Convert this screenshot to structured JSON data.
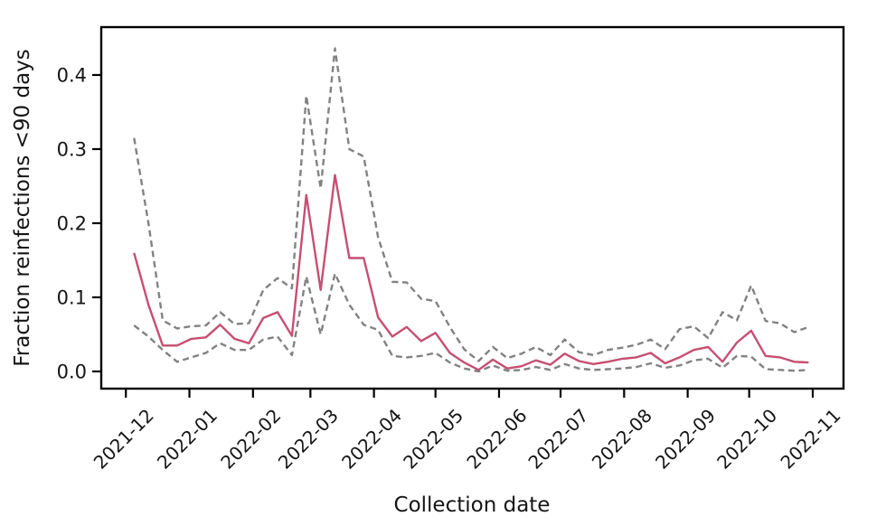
{
  "chart": {
    "xlabel": "Collection date",
    "ylabel": "Fraction reinfections <90 days"
  },
  "chart_data": {
    "type": "line",
    "title": "",
    "xlabel": "Collection date",
    "ylabel": "Fraction reinfections <90 days",
    "grid": false,
    "legend": "none",
    "yticks": [
      "0.0",
      "0.1",
      "0.2",
      "0.3",
      "0.4"
    ],
    "ytick_values": [
      0.0,
      0.1,
      0.2,
      0.3,
      0.4
    ],
    "xticks": [
      "2021-12",
      "2022-01",
      "2022-02",
      "2022-03",
      "2022-04",
      "2022-05",
      "2022-06",
      "2022-07",
      "2022-08",
      "2022-09",
      "2022-10",
      "2022-11"
    ],
    "ylim": [
      -0.0232,
      0.4646
    ],
    "xlim_dates": [
      "2021-11-19",
      "2022-11-16"
    ],
    "x": [
      "2021-12-05",
      "2021-12-12",
      "2021-12-19",
      "2021-12-26",
      "2022-01-02",
      "2022-01-09",
      "2022-01-16",
      "2022-01-23",
      "2022-01-30",
      "2022-02-06",
      "2022-02-13",
      "2022-02-20",
      "2022-02-27",
      "2022-03-06",
      "2022-03-13",
      "2022-03-20",
      "2022-03-27",
      "2022-04-03",
      "2022-04-10",
      "2022-04-17",
      "2022-04-24",
      "2022-05-01",
      "2022-05-08",
      "2022-05-15",
      "2022-05-22",
      "2022-05-29",
      "2022-06-05",
      "2022-06-12",
      "2022-06-19",
      "2022-06-26",
      "2022-07-03",
      "2022-07-10",
      "2022-07-17",
      "2022-07-24",
      "2022-07-31",
      "2022-08-07",
      "2022-08-14",
      "2022-08-21",
      "2022-08-28",
      "2022-09-04",
      "2022-09-11",
      "2022-09-18",
      "2022-09-25",
      "2022-10-02",
      "2022-10-09",
      "2022-10-16",
      "2022-10-23",
      "2022-10-30"
    ],
    "series": [
      {
        "name": "fraction_reinfections",
        "style": "solid",
        "color": "#c64f72",
        "values": [
          0.16,
          0.09,
          0.035,
          0.035,
          0.044,
          0.046,
          0.063,
          0.044,
          0.038,
          0.072,
          0.08,
          0.048,
          0.238,
          0.11,
          0.265,
          0.153,
          0.153,
          0.073,
          0.047,
          0.06,
          0.041,
          0.052,
          0.025,
          0.012,
          0.002,
          0.016,
          0.004,
          0.007,
          0.015,
          0.009,
          0.024,
          0.014,
          0.01,
          0.013,
          0.017,
          0.019,
          0.025,
          0.011,
          0.019,
          0.029,
          0.033,
          0.013,
          0.039,
          0.055,
          0.021,
          0.019,
          0.013,
          0.012
        ]
      },
      {
        "name": "upper_bound",
        "style": "dashed",
        "color": "#828282",
        "values": [
          0.315,
          0.2,
          0.069,
          0.058,
          0.061,
          0.062,
          0.08,
          0.064,
          0.065,
          0.11,
          0.126,
          0.112,
          0.372,
          0.247,
          0.436,
          0.3,
          0.29,
          0.181,
          0.121,
          0.12,
          0.098,
          0.095,
          0.06,
          0.03,
          0.014,
          0.033,
          0.018,
          0.024,
          0.033,
          0.022,
          0.043,
          0.026,
          0.022,
          0.029,
          0.032,
          0.036,
          0.043,
          0.03,
          0.057,
          0.061,
          0.045,
          0.08,
          0.069,
          0.116,
          0.068,
          0.065,
          0.053,
          0.06
        ]
      },
      {
        "name": "lower_bound",
        "style": "dashed",
        "color": "#828282",
        "values": [
          0.062,
          0.047,
          0.029,
          0.013,
          0.019,
          0.025,
          0.038,
          0.029,
          0.029,
          0.043,
          0.047,
          0.022,
          0.128,
          0.05,
          0.132,
          0.09,
          0.063,
          0.056,
          0.021,
          0.019,
          0.021,
          0.025,
          0.012,
          0.004,
          0.0,
          0.008,
          0.001,
          0.002,
          0.006,
          0.002,
          0.01,
          0.004,
          0.002,
          0.003,
          0.004,
          0.006,
          0.011,
          0.005,
          0.008,
          0.015,
          0.017,
          0.005,
          0.021,
          0.02,
          0.003,
          0.002,
          0.001,
          0.002
        ]
      }
    ]
  },
  "colors": {
    "axis": "#000000",
    "text": "#151515",
    "main_line": "#c64f72",
    "bound_line": "#828282"
  }
}
